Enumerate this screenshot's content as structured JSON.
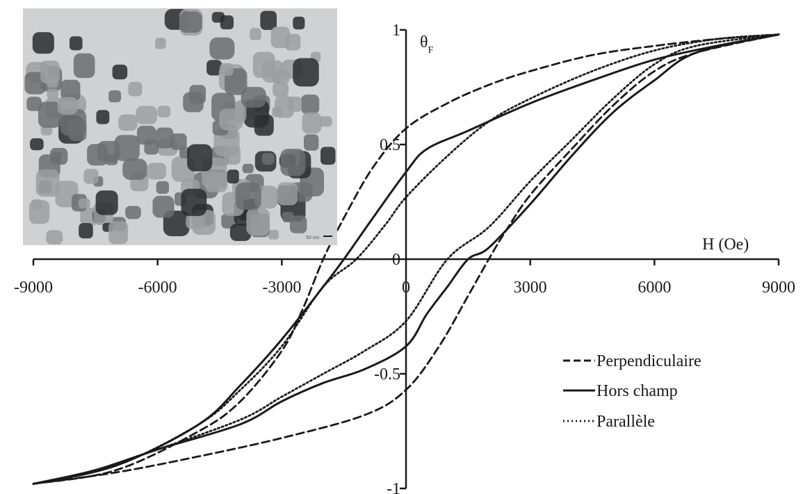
{
  "chart_data": {
    "type": "line",
    "ylabel": "θ",
    "ylabel_subscript": "F",
    "xlabel": "H (Oe)",
    "xlim": [
      -9000,
      9000
    ],
    "ylim": [
      -1,
      1
    ],
    "x_ticks": [
      {
        "value": -9000,
        "label": "-9000"
      },
      {
        "value": -6000,
        "label": "-6000"
      },
      {
        "value": -3000,
        "label": "-3000"
      },
      {
        "value": 0,
        "label": "0"
      },
      {
        "value": 3000,
        "label": "3000"
      },
      {
        "value": 6000,
        "label": "6000"
      },
      {
        "value": 9000,
        "label": "9000"
      }
    ],
    "y_ticks": [
      {
        "value": 1,
        "label": "1"
      },
      {
        "value": 0.5,
        "label": "0.5"
      },
      {
        "value": 0,
        "label": "0"
      },
      {
        "value": -0.5,
        "label": "-0.5"
      },
      {
        "value": -1,
        "label": "-1"
      }
    ],
    "legend_position": "bottom-right",
    "series": [
      {
        "name": "Perpendiculaire",
        "style": "dashed",
        "upper_branch": [
          [
            -9000,
            -0.98
          ],
          [
            -7000,
            -0.92
          ],
          [
            -5000,
            -0.75
          ],
          [
            -4000,
            -0.62
          ],
          [
            -3000,
            -0.4
          ],
          [
            -2500,
            -0.22
          ],
          [
            -2000,
            0
          ],
          [
            -1500,
            0.18
          ],
          [
            -800,
            0.4
          ],
          [
            0,
            0.57
          ],
          [
            1000,
            0.68
          ],
          [
            2000,
            0.76
          ],
          [
            3000,
            0.82
          ],
          [
            4500,
            0.89
          ],
          [
            6000,
            0.93
          ],
          [
            7500,
            0.96
          ],
          [
            9000,
            0.98
          ]
        ],
        "lower_branch": [
          [
            9000,
            0.98
          ],
          [
            7000,
            0.9
          ],
          [
            6000,
            0.82
          ],
          [
            5000,
            0.67
          ],
          [
            4000,
            0.48
          ],
          [
            3000,
            0.28
          ],
          [
            2400,
            0.12
          ],
          [
            2000,
            0
          ],
          [
            1500,
            -0.16
          ],
          [
            800,
            -0.38
          ],
          [
            0,
            -0.57
          ],
          [
            -1000,
            -0.68
          ],
          [
            -3000,
            -0.78
          ],
          [
            -5000,
            -0.86
          ],
          [
            -7000,
            -0.93
          ],
          [
            -9000,
            -0.98
          ]
        ]
      },
      {
        "name": "Hors champ",
        "style": "solid",
        "upper_branch": [
          [
            -9000,
            -0.98
          ],
          [
            -7000,
            -0.9
          ],
          [
            -5000,
            -0.72
          ],
          [
            -4000,
            -0.55
          ],
          [
            -3000,
            -0.35
          ],
          [
            -2000,
            -0.12
          ],
          [
            -1500,
            0
          ],
          [
            -800,
            0.18
          ],
          [
            0,
            0.38
          ],
          [
            500,
            0.48
          ],
          [
            1500,
            0.56
          ],
          [
            3000,
            0.68
          ],
          [
            4500,
            0.78
          ],
          [
            6000,
            0.87
          ],
          [
            7500,
            0.93
          ],
          [
            9000,
            0.98
          ]
        ],
        "lower_branch": [
          [
            9000,
            0.98
          ],
          [
            7000,
            0.9
          ],
          [
            6000,
            0.78
          ],
          [
            5000,
            0.64
          ],
          [
            4000,
            0.45
          ],
          [
            3000,
            0.24
          ],
          [
            2000,
            0.05
          ],
          [
            1500,
            0
          ],
          [
            1000,
            -0.12
          ],
          [
            500,
            -0.24
          ],
          [
            0,
            -0.38
          ],
          [
            -1000,
            -0.48
          ],
          [
            -2000,
            -0.54
          ],
          [
            -3000,
            -0.62
          ],
          [
            -4000,
            -0.72
          ],
          [
            -6000,
            -0.83
          ],
          [
            -7500,
            -0.92
          ],
          [
            -9000,
            -0.98
          ]
        ]
      },
      {
        "name": "Parallèle",
        "style": "dotted",
        "upper_branch": [
          [
            -9000,
            -0.98
          ],
          [
            -7000,
            -0.9
          ],
          [
            -5000,
            -0.72
          ],
          [
            -4000,
            -0.57
          ],
          [
            -3000,
            -0.38
          ],
          [
            -2000,
            -0.12
          ],
          [
            -1200,
            0
          ],
          [
            -500,
            0.15
          ],
          [
            0,
            0.27
          ],
          [
            1000,
            0.45
          ],
          [
            2000,
            0.6
          ],
          [
            3000,
            0.7
          ],
          [
            4500,
            0.82
          ],
          [
            6000,
            0.91
          ],
          [
            7500,
            0.96
          ],
          [
            9000,
            0.98
          ]
        ],
        "lower_branch": [
          [
            9000,
            0.98
          ],
          [
            7000,
            0.93
          ],
          [
            6000,
            0.85
          ],
          [
            5000,
            0.7
          ],
          [
            4000,
            0.52
          ],
          [
            3000,
            0.34
          ],
          [
            2000,
            0.14
          ],
          [
            1000,
            0
          ],
          [
            0,
            -0.27
          ],
          [
            -1000,
            -0.4
          ],
          [
            -2000,
            -0.5
          ],
          [
            -3000,
            -0.6
          ],
          [
            -4000,
            -0.7
          ],
          [
            -6000,
            -0.83
          ],
          [
            -7500,
            -0.92
          ],
          [
            -9000,
            -0.98
          ]
        ]
      }
    ]
  },
  "inset": {
    "scale_bar_text": "50 nm",
    "colors": {
      "background": "#cfd2d3",
      "particle_light": "#9c9fa2",
      "particle_mid": "#6b6e71",
      "particle_dark": "#2a2b2d"
    }
  }
}
